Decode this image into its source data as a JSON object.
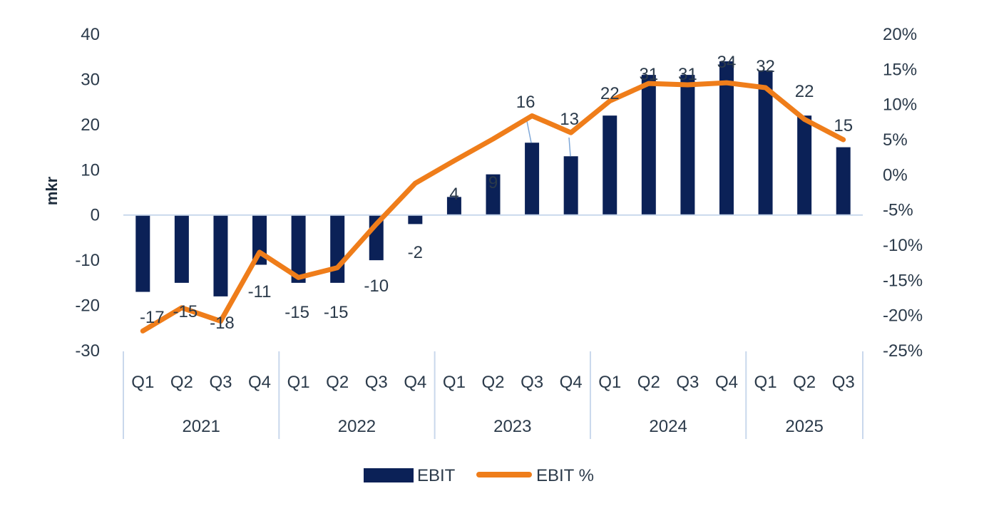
{
  "chart_data": {
    "type": "bar+line",
    "title": "",
    "categories": [
      "Q1",
      "Q2",
      "Q3",
      "Q4",
      "Q1",
      "Q2",
      "Q3",
      "Q4",
      "Q1",
      "Q2",
      "Q3",
      "Q4",
      "Q1",
      "Q2",
      "Q3",
      "Q4",
      "Q1",
      "Q2",
      "Q3"
    ],
    "groups": [
      {
        "label": "2021",
        "count": 4
      },
      {
        "label": "2022",
        "count": 4
      },
      {
        "label": "2023",
        "count": 4
      },
      {
        "label": "2024",
        "count": 4
      },
      {
        "label": "2025",
        "count": 3
      }
    ],
    "series": [
      {
        "name": "EBIT",
        "type": "bar",
        "axis": "left",
        "color": "#0b2157",
        "values": [
          -17,
          -15,
          -18,
          -11,
          -15,
          -15,
          -10,
          -2,
          4,
          9,
          16,
          13,
          22,
          31,
          31,
          34,
          32,
          22,
          15
        ],
        "labels": [
          "-17",
          "-15",
          "-18",
          "-11",
          "-15",
          "-15",
          "-10",
          "-2",
          "4",
          "9",
          "16",
          "13",
          "22",
          "31",
          "31",
          "34",
          "32",
          "22",
          "15"
        ]
      },
      {
        "name": "EBIT %",
        "type": "line",
        "axis": "right",
        "color": "#ef7d1a",
        "values": [
          -22.2,
          -18.9,
          -20.8,
          -11.0,
          -14.6,
          -13.2,
          -7.0,
          -1.2,
          2.0,
          5.1,
          8.4,
          6.0,
          10.5,
          13.0,
          12.8,
          13.1,
          12.4,
          7.9,
          5.0
        ]
      }
    ],
    "y_left": {
      "label": "mkr",
      "min": -30,
      "max": 40,
      "step": 10,
      "ticks": [
        "-30",
        "-20",
        "-10",
        "0",
        "10",
        "20",
        "30",
        "40"
      ]
    },
    "y_right": {
      "label": "",
      "min": -25,
      "max": 20,
      "step": 5,
      "ticks": [
        "-25%",
        "-20%",
        "-15%",
        "-10%",
        "-5%",
        "0%",
        "5%",
        "10%",
        "15%",
        "20%"
      ]
    },
    "grid": false,
    "legend": {
      "position": "bottom",
      "entries": [
        {
          "label": "EBIT",
          "kind": "bar",
          "color": "#0b2157"
        },
        {
          "label": "EBIT %",
          "kind": "line",
          "color": "#ef7d1a"
        }
      ]
    },
    "colors": {
      "axis_line": "#c9d8ec",
      "text": "#2b3a4a",
      "leader_line": "#7fa8d8"
    }
  }
}
